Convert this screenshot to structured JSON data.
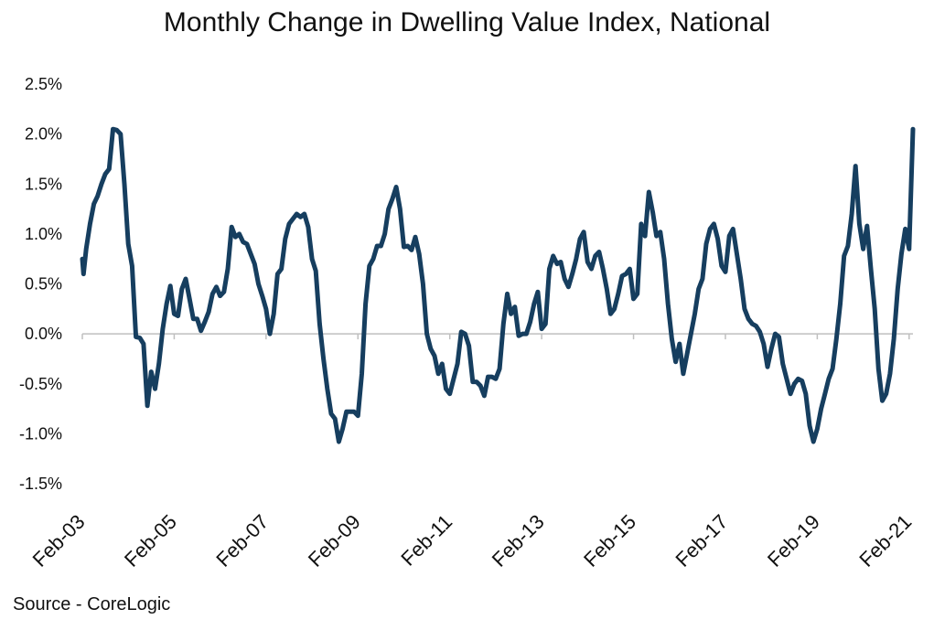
{
  "chart_data": {
    "type": "line",
    "title": "Monthly Change in Dwelling Value Index, National",
    "source": "Source - CoreLogic",
    "xlabel": "",
    "ylabel": "",
    "ylim": [
      -1.5,
      2.5
    ],
    "yticks": [
      "2.5%",
      "2.0%",
      "1.5%",
      "1.0%",
      "0.5%",
      "0.0%",
      "-0.5%",
      "-1.0%",
      "-1.5%"
    ],
    "ytick_values": [
      2.5,
      2.0,
      1.5,
      1.0,
      0.5,
      0.0,
      -0.5,
      -1.0,
      -1.5
    ],
    "xticks": [
      "Feb-03",
      "Feb-05",
      "Feb-07",
      "Feb-09",
      "Feb-11",
      "Feb-13",
      "Feb-15",
      "Feb-17",
      "Feb-19",
      "Feb-21"
    ],
    "xtick_months": [
      0,
      24,
      48,
      72,
      96,
      120,
      144,
      168,
      192,
      216
    ],
    "x_start": "Feb-03",
    "line_color": "#163E5F",
    "series": [
      {
        "name": "Monthly Change",
        "points": [
          [
            0,
            0.75
          ],
          [
            0.3,
            0.6
          ],
          [
            1,
            0.85
          ],
          [
            2,
            1.1
          ],
          [
            3,
            1.3
          ],
          [
            4,
            1.38
          ],
          [
            5,
            1.5
          ],
          [
            6,
            1.6
          ],
          [
            7,
            1.65
          ],
          [
            8,
            2.05
          ],
          [
            9,
            2.04
          ],
          [
            10,
            2.0
          ],
          [
            11,
            1.5
          ],
          [
            12,
            0.9
          ],
          [
            13,
            0.68
          ],
          [
            14,
            -0.03
          ],
          [
            15,
            -0.04
          ],
          [
            16,
            -0.1
          ],
          [
            17,
            -0.72
          ],
          [
            18,
            -0.38
          ],
          [
            19,
            -0.55
          ],
          [
            20,
            -0.3
          ],
          [
            21,
            0.05
          ],
          [
            22,
            0.3
          ],
          [
            23,
            0.48
          ],
          [
            24,
            0.2
          ],
          [
            25,
            0.18
          ],
          [
            26,
            0.45
          ],
          [
            27,
            0.55
          ],
          [
            28,
            0.35
          ],
          [
            29,
            0.15
          ],
          [
            30,
            0.15
          ],
          [
            31,
            0.03
          ],
          [
            32,
            0.12
          ],
          [
            33,
            0.22
          ],
          [
            34,
            0.4
          ],
          [
            35,
            0.47
          ],
          [
            36,
            0.38
          ],
          [
            37,
            0.42
          ],
          [
            38,
            0.65
          ],
          [
            39,
            1.07
          ],
          [
            40,
            0.97
          ],
          [
            41,
            1.0
          ],
          [
            42,
            0.92
          ],
          [
            43,
            0.9
          ],
          [
            44,
            0.8
          ],
          [
            45,
            0.7
          ],
          [
            46,
            0.5
          ],
          [
            47,
            0.38
          ],
          [
            48,
            0.25
          ],
          [
            49,
            0.0
          ],
          [
            50,
            0.2
          ],
          [
            51,
            0.6
          ],
          [
            52,
            0.65
          ],
          [
            53,
            0.95
          ],
          [
            54,
            1.1
          ],
          [
            55,
            1.15
          ],
          [
            56,
            1.2
          ],
          [
            57,
            1.17
          ],
          [
            58,
            1.2
          ],
          [
            59,
            1.07
          ],
          [
            60,
            0.75
          ],
          [
            61,
            0.63
          ],
          [
            62,
            0.1
          ],
          [
            63,
            -0.25
          ],
          [
            64,
            -0.55
          ],
          [
            65,
            -0.8
          ],
          [
            66,
            -0.85
          ],
          [
            67,
            -1.08
          ],
          [
            68,
            -0.95
          ],
          [
            69,
            -0.78
          ],
          [
            70,
            -0.78
          ],
          [
            71,
            -0.78
          ],
          [
            72,
            -0.82
          ],
          [
            73,
            -0.4
          ],
          [
            74,
            0.3
          ],
          [
            75,
            0.68
          ],
          [
            76,
            0.75
          ],
          [
            77,
            0.88
          ],
          [
            78,
            0.88
          ],
          [
            79,
            1.0
          ],
          [
            80,
            1.25
          ],
          [
            81,
            1.35
          ],
          [
            82,
            1.47
          ],
          [
            83,
            1.25
          ],
          [
            84,
            0.87
          ],
          [
            85,
            0.88
          ],
          [
            86,
            0.84
          ],
          [
            87,
            0.97
          ],
          [
            88,
            0.8
          ],
          [
            89,
            0.5
          ],
          [
            90,
            0.0
          ],
          [
            91,
            -0.15
          ],
          [
            92,
            -0.22
          ],
          [
            93,
            -0.4
          ],
          [
            94,
            -0.3
          ],
          [
            95,
            -0.55
          ],
          [
            96,
            -0.6
          ],
          [
            97,
            -0.45
          ],
          [
            98,
            -0.3
          ],
          [
            99,
            0.02
          ],
          [
            100,
            0.0
          ],
          [
            101,
            -0.12
          ],
          [
            102,
            -0.48
          ],
          [
            103,
            -0.48
          ],
          [
            104,
            -0.52
          ],
          [
            105,
            -0.62
          ],
          [
            106,
            -0.43
          ],
          [
            107,
            -0.43
          ],
          [
            108,
            -0.45
          ],
          [
            109,
            -0.35
          ],
          [
            110,
            0.1
          ],
          [
            111,
            0.4
          ],
          [
            112,
            0.2
          ],
          [
            113,
            0.27
          ],
          [
            114,
            -0.02
          ],
          [
            115,
            0.0
          ],
          [
            116,
            0.0
          ],
          [
            117,
            0.12
          ],
          [
            118,
            0.3
          ],
          [
            119,
            0.42
          ],
          [
            120,
            0.05
          ],
          [
            121,
            0.1
          ],
          [
            122,
            0.65
          ],
          [
            123,
            0.78
          ],
          [
            124,
            0.7
          ],
          [
            125,
            0.72
          ],
          [
            126,
            0.55
          ],
          [
            127,
            0.47
          ],
          [
            128,
            0.6
          ],
          [
            129,
            0.75
          ],
          [
            130,
            0.95
          ],
          [
            131,
            1.02
          ],
          [
            132,
            0.72
          ],
          [
            133,
            0.65
          ],
          [
            134,
            0.78
          ],
          [
            135,
            0.82
          ],
          [
            136,
            0.65
          ],
          [
            137,
            0.45
          ],
          [
            138,
            0.2
          ],
          [
            139,
            0.25
          ],
          [
            140,
            0.4
          ],
          [
            141,
            0.58
          ],
          [
            142,
            0.6
          ],
          [
            143,
            0.65
          ],
          [
            144,
            0.35
          ],
          [
            145,
            0.4
          ],
          [
            146,
            1.1
          ],
          [
            147,
            0.98
          ],
          [
            148,
            1.42
          ],
          [
            149,
            1.22
          ],
          [
            150,
            0.98
          ],
          [
            151,
            1.02
          ],
          [
            152,
            0.75
          ],
          [
            153,
            0.3
          ],
          [
            154,
            -0.05
          ],
          [
            155,
            -0.28
          ],
          [
            156,
            -0.1
          ],
          [
            157,
            -0.4
          ],
          [
            158,
            -0.2
          ],
          [
            159,
            0.0
          ],
          [
            160,
            0.2
          ],
          [
            161,
            0.45
          ],
          [
            162,
            0.55
          ],
          [
            163,
            0.9
          ],
          [
            164,
            1.05
          ],
          [
            165,
            1.1
          ],
          [
            166,
            0.95
          ],
          [
            167,
            0.68
          ],
          [
            168,
            0.62
          ],
          [
            169,
            0.98
          ],
          [
            170,
            1.05
          ],
          [
            171,
            0.8
          ],
          [
            172,
            0.55
          ],
          [
            173,
            0.25
          ],
          [
            174,
            0.15
          ],
          [
            175,
            0.1
          ],
          [
            176,
            0.08
          ],
          [
            177,
            0.02
          ],
          [
            178,
            -0.1
          ],
          [
            179,
            -0.33
          ],
          [
            180,
            -0.15
          ],
          [
            181,
            0.0
          ],
          [
            182,
            -0.03
          ],
          [
            183,
            -0.3
          ],
          [
            184,
            -0.45
          ],
          [
            185,
            -0.6
          ],
          [
            186,
            -0.5
          ],
          [
            187,
            -0.45
          ],
          [
            188,
            -0.47
          ],
          [
            189,
            -0.6
          ],
          [
            190,
            -0.92
          ],
          [
            191,
            -1.08
          ],
          [
            192,
            -0.95
          ],
          [
            193,
            -0.75
          ],
          [
            194,
            -0.6
          ],
          [
            195,
            -0.45
          ],
          [
            196,
            -0.35
          ],
          [
            197,
            -0.05
          ],
          [
            198,
            0.3
          ],
          [
            199,
            0.78
          ],
          [
            200,
            0.88
          ],
          [
            201,
            1.2
          ],
          [
            202,
            1.68
          ],
          [
            203,
            1.1
          ],
          [
            204,
            0.85
          ],
          [
            205,
            1.08
          ],
          [
            206,
            0.65
          ],
          [
            207,
            0.25
          ],
          [
            208,
            -0.35
          ],
          [
            209,
            -0.67
          ],
          [
            210,
            -0.6
          ],
          [
            211,
            -0.4
          ],
          [
            212,
            -0.05
          ],
          [
            213,
            0.45
          ],
          [
            214,
            0.8
          ],
          [
            215,
            1.05
          ],
          [
            216,
            0.85
          ],
          [
            217,
            2.05
          ]
        ]
      }
    ]
  }
}
